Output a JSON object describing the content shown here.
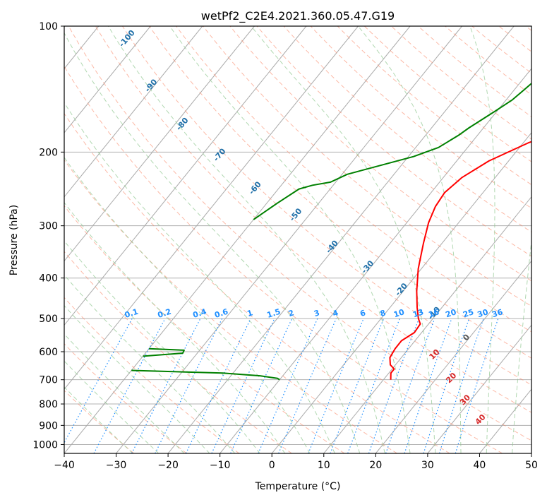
{
  "chart_data": {
    "type": "line",
    "title": "wetPf2_C2E4.2021.360.05.47.G19",
    "xlabel": "Temperature (°C)",
    "ylabel": "Pressure (hPa)",
    "xlim": [
      -40,
      50
    ],
    "ylim": [
      1050,
      100
    ],
    "y_scale": "log",
    "grid": true,
    "x_ticks": [
      "−40",
      "−30",
      "−20",
      "−10",
      "0",
      "10",
      "20",
      "30",
      "40",
      "50"
    ],
    "y_ticks": [
      "100",
      "200",
      "300",
      "400",
      "500",
      "600",
      "700",
      "800",
      "900",
      "1000"
    ],
    "colors": {
      "temperature": "#ff0000",
      "dewpoint": "#008000",
      "isotherms": "#aaaaaa",
      "dry_adiabats": "#fa8a6a",
      "moist_adiabats": "#90c890",
      "mixing_ratio": "#1f8fff",
      "skewt_labels": "#1f6fa8",
      "moist_labels": "#d62728"
    },
    "series": [
      {
        "key": "temperature",
        "points": [
          [
            11.4,
            700
          ],
          [
            10.4,
            675
          ],
          [
            10.4,
            660
          ],
          [
            9.0,
            645
          ],
          [
            7.8,
            620
          ],
          [
            7.4,
            590
          ],
          [
            7.4,
            565
          ],
          [
            8.6,
            540
          ],
          [
            8.4,
            515
          ],
          [
            7.2,
            500
          ],
          [
            5.2,
            470
          ],
          [
            2.6,
            430
          ],
          [
            -0.6,
            380
          ],
          [
            -3.6,
            330
          ],
          [
            -5.8,
            295
          ],
          [
            -7.0,
            270
          ],
          [
            -7.4,
            250
          ],
          [
            -6.4,
            230
          ],
          [
            -3.8,
            210
          ],
          [
            1.0,
            190
          ],
          [
            5.0,
            180
          ],
          [
            8.2,
            170
          ],
          [
            9.8,
            155
          ],
          [
            10.0,
            140
          ],
          [
            10.4,
            128
          ],
          [
            12.8,
            115
          ],
          [
            17.6,
            106
          ],
          [
            20.8,
            100
          ]
        ]
      },
      {
        "key": "dewpoint",
        "points": [
          [
            -10.0,
            700
          ],
          [
            -10.6,
            695
          ],
          [
            -14.4,
            685
          ],
          [
            -22.0,
            675
          ],
          [
            -40.0,
            665
          ],
          null,
          [
            -40.0,
            615
          ],
          [
            -32.8,
            605
          ],
          [
            -33.0,
            595
          ],
          [
            -40.0,
            590
          ],
          null,
          [
            -40.0,
            290
          ],
          [
            -38.0,
            265
          ],
          [
            -36.0,
            245
          ],
          [
            -34.0,
            240
          ],
          [
            -31.0,
            236
          ],
          [
            -29.0,
            226
          ],
          [
            -19.0,
            205
          ],
          [
            -15.6,
            195
          ],
          [
            -13.6,
            182
          ],
          [
            -12.8,
            175
          ],
          [
            -10.4,
            160
          ],
          [
            -8.8,
            150
          ],
          [
            -7.0,
            130
          ],
          [
            -3.4,
            115
          ],
          [
            -0.8,
            105
          ],
          [
            0.8,
            100
          ]
        ]
      }
    ],
    "skewt_labels": [
      "-100",
      "-90",
      "-80",
      "-70",
      "-60",
      "-50",
      "-40",
      "-30",
      "-20",
      "-10",
      "0"
    ],
    "mixing_ratio_labels": [
      "0.1",
      "0.2",
      "0.4",
      "0.6",
      "1",
      "1.5",
      "2",
      "3",
      "4",
      "6",
      "8",
      "10",
      "13",
      "16",
      "20",
      "25",
      "30",
      "36"
    ],
    "moist_adiabat_labels": [
      "10",
      "20",
      "30",
      "40"
    ]
  }
}
